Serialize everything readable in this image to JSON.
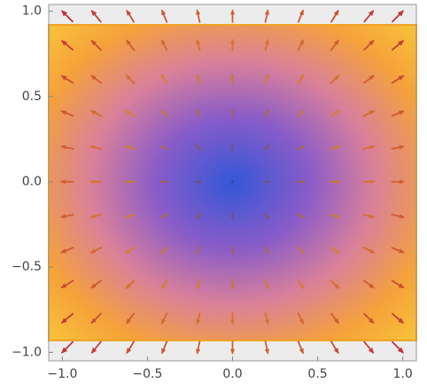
{
  "chart_data": {
    "type": "vector",
    "xlim": [
      -1.08,
      1.08
    ],
    "ylim": [
      -1.05,
      1.04
    ],
    "xticks": [
      {
        "value": -1,
        "label": "−1.0"
      },
      {
        "value": -0.5,
        "label": "−0.5"
      },
      {
        "value": 0,
        "label": "0.0"
      },
      0.5,
      {
        "value": 1,
        "label": "1.0"
      }
    ],
    "yticks": [
      {
        "value": -1,
        "label": "−1.0"
      },
      {
        "value": -0.5,
        "label": "−0.5"
      },
      {
        "value": 0,
        "label": "0.0"
      },
      0.5,
      {
        "value": 1,
        "label": "1.0"
      }
    ],
    "region": {
      "xlim": [
        -1.08,
        1.08
      ],
      "ylim": [
        -0.93,
        0.92
      ],
      "color": "#f0a020"
    },
    "arrow_colors": [
      "#4a3c8c",
      "#d9822b",
      "#c0303a"
    ],
    "x": [
      -0.97,
      -0.8,
      -0.6,
      -0.4,
      -0.2,
      0,
      0.2,
      0.4,
      0.6,
      0.8,
      0.97
    ],
    "y": [
      -0.97,
      -0.8,
      -0.6,
      -0.4,
      -0.2,
      0,
      0.2,
      0.4,
      0.6,
      0.8,
      0.97
    ],
    "u": [
      [
        -0.97,
        -0.8,
        -0.6,
        -0.4,
        -0.2,
        0,
        0.2,
        0.4,
        0.6,
        0.8,
        0.97
      ],
      [
        -0.97,
        -0.8,
        -0.6,
        -0.4,
        -0.2,
        0,
        0.2,
        0.4,
        0.6,
        0.8,
        0.97
      ],
      [
        -0.97,
        -0.8,
        -0.6,
        -0.4,
        -0.2,
        0,
        0.2,
        0.4,
        0.6,
        0.8,
        0.97
      ],
      [
        -0.97,
        -0.8,
        -0.6,
        -0.4,
        -0.2,
        0,
        0.2,
        0.4,
        0.6,
        0.8,
        0.97
      ],
      [
        -0.97,
        -0.8,
        -0.6,
        -0.4,
        -0.2,
        0,
        0.2,
        0.4,
        0.6,
        0.8,
        0.97
      ],
      [
        -0.97,
        -0.8,
        -0.6,
        -0.4,
        -0.2,
        0,
        0.2,
        0.4,
        0.6,
        0.8,
        0.97
      ],
      [
        -0.97,
        -0.8,
        -0.6,
        -0.4,
        -0.2,
        0,
        0.2,
        0.4,
        0.6,
        0.8,
        0.97
      ],
      [
        -0.97,
        -0.8,
        -0.6,
        -0.4,
        -0.2,
        0,
        0.2,
        0.4,
        0.6,
        0.8,
        0.97
      ],
      [
        -0.97,
        -0.8,
        -0.6,
        -0.4,
        -0.2,
        0,
        0.2,
        0.4,
        0.6,
        0.8,
        0.97
      ],
      [
        -0.97,
        -0.8,
        -0.6,
        -0.4,
        -0.2,
        0,
        0.2,
        0.4,
        0.6,
        0.8,
        0.97
      ],
      [
        -0.97,
        -0.8,
        -0.6,
        -0.4,
        -0.2,
        0,
        0.2,
        0.4,
        0.6,
        0.8,
        0.97
      ]
    ],
    "v": [
      [
        -0.97,
        -0.97,
        -0.97,
        -0.97,
        -0.97,
        -0.97,
        -0.97,
        -0.97,
        -0.97,
        -0.97,
        -0.97
      ],
      [
        -0.8,
        -0.8,
        -0.8,
        -0.8,
        -0.8,
        -0.8,
        -0.8,
        -0.8,
        -0.8,
        -0.8,
        -0.8
      ],
      [
        -0.6,
        -0.6,
        -0.6,
        -0.6,
        -0.6,
        -0.6,
        -0.6,
        -0.6,
        -0.6,
        -0.6,
        -0.6
      ],
      [
        -0.4,
        -0.4,
        -0.4,
        -0.4,
        -0.4,
        -0.4,
        -0.4,
        -0.4,
        -0.4,
        -0.4,
        -0.4
      ],
      [
        -0.2,
        -0.2,
        -0.2,
        -0.2,
        -0.2,
        -0.2,
        -0.2,
        -0.2,
        -0.2,
        -0.2,
        -0.2
      ],
      [
        0,
        0,
        0,
        0,
        0,
        0,
        0,
        0,
        0,
        0,
        0
      ],
      [
        0.2,
        0.2,
        0.2,
        0.2,
        0.2,
        0.2,
        0.2,
        0.2,
        0.2,
        0.2,
        0.2
      ],
      [
        0.4,
        0.4,
        0.4,
        0.4,
        0.4,
        0.4,
        0.4,
        0.4,
        0.4,
        0.4,
        0.4
      ],
      [
        0.6,
        0.6,
        0.6,
        0.6,
        0.6,
        0.6,
        0.6,
        0.6,
        0.6,
        0.6,
        0.6
      ],
      [
        0.8,
        0.8,
        0.8,
        0.8,
        0.8,
        0.8,
        0.8,
        0.8,
        0.8,
        0.8,
        0.8
      ],
      [
        0.97,
        0.97,
        0.97,
        0.97,
        0.97,
        0.97,
        0.97,
        0.97,
        0.97,
        0.97,
        0.97
      ]
    ]
  }
}
